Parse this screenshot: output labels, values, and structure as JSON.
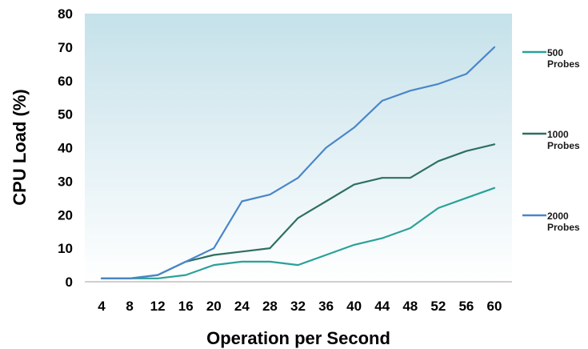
{
  "chart_data": {
    "type": "line",
    "title": "",
    "xlabel": "Operation per Second",
    "ylabel": "CPU Load (%)",
    "x": [
      4,
      8,
      12,
      16,
      20,
      24,
      28,
      32,
      36,
      40,
      44,
      48,
      52,
      56,
      60
    ],
    "x_tick_labels": [
      "4",
      "8",
      "12",
      "16",
      "20",
      "24",
      "28",
      "32",
      "36",
      "40",
      "44",
      "48",
      "52",
      "56",
      "60"
    ],
    "ylim": [
      0,
      80
    ],
    "y_ticks": [
      0,
      10,
      20,
      30,
      40,
      50,
      60,
      70,
      80
    ],
    "y_tick_labels": [
      "0",
      "10",
      "20",
      "30",
      "40",
      "50",
      "60",
      "70",
      "80"
    ],
    "grid": false,
    "legend_position": "right",
    "background": "vertical gradient, light blue to white",
    "series": [
      {
        "name": "500 Probes",
        "legend_lines": [
          "500",
          "Probes"
        ],
        "color": "#2aa198",
        "values": [
          1,
          1,
          1,
          2,
          5,
          6,
          6,
          5,
          8,
          11,
          13,
          16,
          22,
          25,
          28
        ]
      },
      {
        "name": "1000 Probes",
        "legend_lines": [
          "1000",
          "Probes"
        ],
        "color": "#2f6f63",
        "values": [
          1,
          1,
          2,
          6,
          8,
          9,
          10,
          19,
          24,
          29,
          31,
          31,
          36,
          39,
          41
        ]
      },
      {
        "name": "2000 Probes",
        "legend_lines": [
          "2000",
          "Probes"
        ],
        "color": "#4a86c8",
        "values": [
          1,
          1,
          2,
          6,
          10,
          24,
          26,
          31,
          40,
          46,
          54,
          57,
          59,
          62,
          70
        ]
      }
    ]
  }
}
